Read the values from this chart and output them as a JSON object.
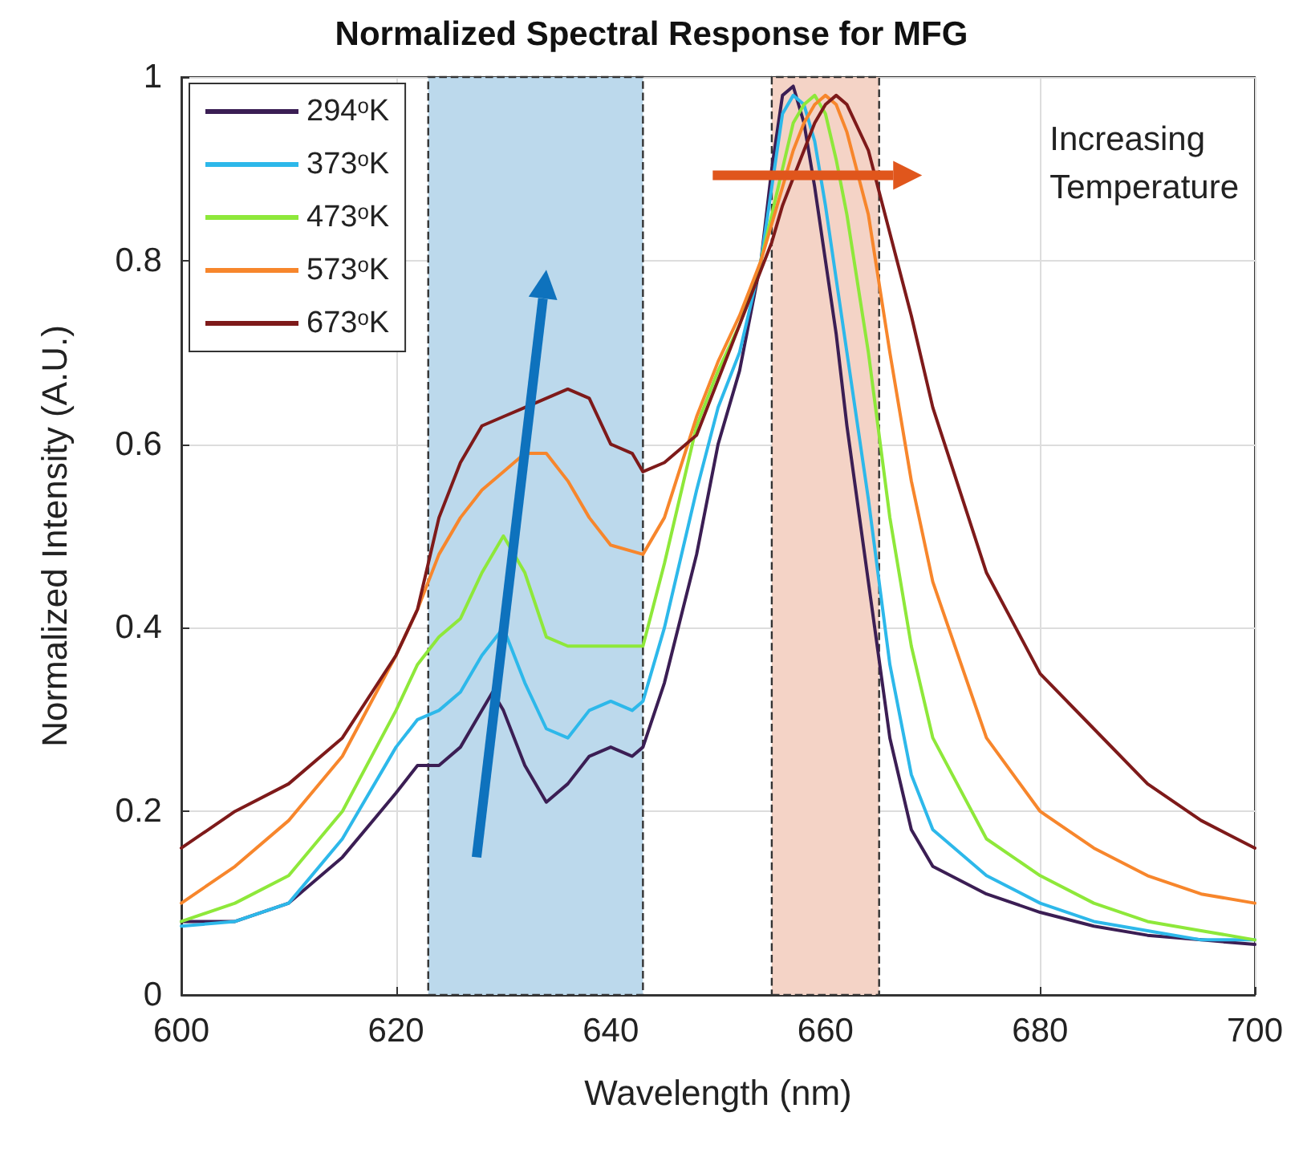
{
  "chart_data": {
    "type": "line",
    "title": "Normalized Spectral Response for MFG",
    "xlabel": "Wavelength (nm)",
    "ylabel": "Normalized Intensity (A.U.)",
    "xlim": [
      600,
      700
    ],
    "xticks": [
      600,
      620,
      640,
      660,
      680,
      700
    ],
    "ylim": [
      0,
      1
    ],
    "yticks": [
      0,
      0.2,
      0.4,
      0.6,
      0.8,
      1
    ],
    "grid": true,
    "legend": "top left",
    "marker": "none",
    "line_style": "solid",
    "annotations": [
      "Increasing Temperature"
    ],
    "bands": [
      {
        "axis": "x",
        "from": 623,
        "to": 643,
        "color": "#bcd9ec"
      },
      {
        "axis": "x",
        "from": 655,
        "to": 665,
        "color": "#f4d3c6"
      }
    ],
    "series": [
      {
        "name": "294ᵒK",
        "color": "#3b1e54",
        "x": [
          600,
          605,
          610,
          615,
          620,
          622,
          624,
          626,
          628,
          629,
          630,
          632,
          634,
          636,
          638,
          640,
          642,
          643,
          645,
          648,
          650,
          652,
          654,
          655,
          656,
          657,
          658,
          659,
          660,
          661,
          662,
          664,
          666,
          668,
          670,
          675,
          680,
          685,
          690,
          695,
          700
        ],
        "values": [
          0.08,
          0.08,
          0.1,
          0.15,
          0.22,
          0.25,
          0.25,
          0.27,
          0.31,
          0.33,
          0.31,
          0.25,
          0.21,
          0.23,
          0.26,
          0.27,
          0.26,
          0.27,
          0.34,
          0.48,
          0.6,
          0.68,
          0.8,
          0.9,
          0.98,
          0.99,
          0.95,
          0.88,
          0.8,
          0.72,
          0.62,
          0.45,
          0.28,
          0.18,
          0.14,
          0.11,
          0.09,
          0.075,
          0.065,
          0.06,
          0.055
        ]
      },
      {
        "name": "373ᵒK",
        "color": "#2db8ea",
        "x": [
          600,
          605,
          610,
          615,
          620,
          622,
          624,
          626,
          628,
          630,
          632,
          634,
          636,
          638,
          640,
          642,
          643,
          645,
          648,
          650,
          652,
          654,
          655,
          656,
          657,
          658,
          659,
          660,
          661,
          662,
          664,
          666,
          668,
          670,
          675,
          680,
          685,
          690,
          695,
          700
        ],
        "values": [
          0.075,
          0.08,
          0.1,
          0.17,
          0.27,
          0.3,
          0.31,
          0.33,
          0.37,
          0.4,
          0.34,
          0.29,
          0.28,
          0.31,
          0.32,
          0.31,
          0.32,
          0.4,
          0.55,
          0.64,
          0.7,
          0.8,
          0.88,
          0.96,
          0.98,
          0.97,
          0.93,
          0.86,
          0.78,
          0.7,
          0.54,
          0.36,
          0.24,
          0.18,
          0.13,
          0.1,
          0.08,
          0.07,
          0.06,
          0.06
        ]
      },
      {
        "name": "473ᵒK",
        "color": "#8ee83a",
        "x": [
          600,
          605,
          610,
          615,
          620,
          622,
          624,
          626,
          628,
          630,
          632,
          634,
          636,
          638,
          640,
          643,
          645,
          648,
          650,
          652,
          654,
          655,
          656,
          657,
          658,
          659,
          660,
          661,
          662,
          664,
          666,
          668,
          670,
          675,
          680,
          685,
          690,
          695,
          700
        ],
        "values": [
          0.08,
          0.1,
          0.13,
          0.2,
          0.31,
          0.36,
          0.39,
          0.41,
          0.46,
          0.5,
          0.46,
          0.39,
          0.38,
          0.38,
          0.38,
          0.38,
          0.47,
          0.62,
          0.68,
          0.73,
          0.8,
          0.85,
          0.9,
          0.95,
          0.97,
          0.98,
          0.96,
          0.91,
          0.85,
          0.7,
          0.52,
          0.38,
          0.28,
          0.17,
          0.13,
          0.1,
          0.08,
          0.07,
          0.06
        ]
      },
      {
        "name": "573ᵒK",
        "color": "#f7862c",
        "x": [
          600,
          605,
          610,
          615,
          620,
          622,
          624,
          626,
          628,
          630,
          632,
          634,
          636,
          638,
          640,
          643,
          645,
          648,
          650,
          652,
          654,
          655,
          656,
          657,
          658,
          659,
          660,
          661,
          662,
          664,
          666,
          668,
          670,
          675,
          680,
          685,
          690,
          695,
          700
        ],
        "values": [
          0.1,
          0.14,
          0.19,
          0.26,
          0.37,
          0.42,
          0.48,
          0.52,
          0.55,
          0.57,
          0.59,
          0.59,
          0.56,
          0.52,
          0.49,
          0.48,
          0.52,
          0.63,
          0.69,
          0.74,
          0.8,
          0.84,
          0.88,
          0.92,
          0.95,
          0.97,
          0.98,
          0.97,
          0.94,
          0.85,
          0.7,
          0.56,
          0.45,
          0.28,
          0.2,
          0.16,
          0.13,
          0.11,
          0.1
        ]
      },
      {
        "name": "673ᵒK",
        "color": "#7e1a1a",
        "x": [
          600,
          605,
          610,
          615,
          620,
          622,
          624,
          626,
          628,
          630,
          632,
          634,
          636,
          638,
          640,
          642,
          643,
          645,
          648,
          650,
          652,
          654,
          655,
          656,
          657,
          658,
          659,
          660,
          661,
          662,
          664,
          666,
          668,
          670,
          675,
          680,
          685,
          690,
          695,
          700
        ],
        "values": [
          0.16,
          0.2,
          0.23,
          0.28,
          0.37,
          0.42,
          0.52,
          0.58,
          0.62,
          0.63,
          0.64,
          0.65,
          0.66,
          0.65,
          0.6,
          0.59,
          0.57,
          0.58,
          0.61,
          0.67,
          0.73,
          0.79,
          0.82,
          0.86,
          0.89,
          0.92,
          0.95,
          0.97,
          0.98,
          0.97,
          0.92,
          0.83,
          0.74,
          0.64,
          0.46,
          0.35,
          0.29,
          0.23,
          0.19,
          0.16
        ]
      }
    ]
  }
}
